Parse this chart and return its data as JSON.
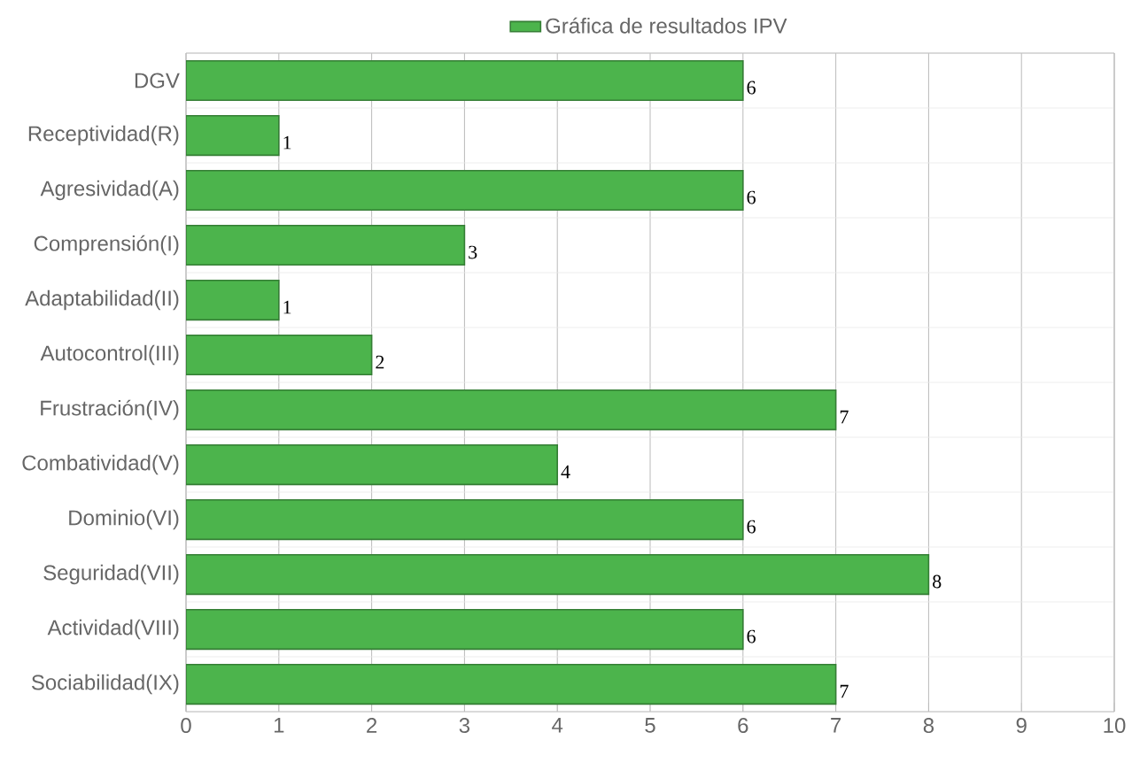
{
  "chart_data": {
    "type": "bar",
    "orientation": "horizontal",
    "categories": [
      "DGV",
      "Receptividad(R)",
      "Agresividad(A)",
      "Comprensión(I)",
      "Adaptabilidad(II)",
      "Autocontrol(III)",
      "Frustración(IV)",
      "Combatividad(V)",
      "Dominio(VI)",
      "Seguridad(VII)",
      "Actividad(VIII)",
      "Sociabilidad(IX)"
    ],
    "series": [
      {
        "name": "Gráfica de resultados IPV",
        "color": "#4cb44c",
        "values": [
          6,
          1,
          6,
          3,
          1,
          2,
          7,
          4,
          6,
          8,
          6,
          7
        ]
      }
    ],
    "xlim": [
      0,
      10
    ],
    "xticks": [
      0,
      1,
      2,
      3,
      4,
      5,
      6,
      7,
      8,
      9,
      10
    ],
    "grid": true,
    "legend": "top",
    "data_labels": true
  }
}
